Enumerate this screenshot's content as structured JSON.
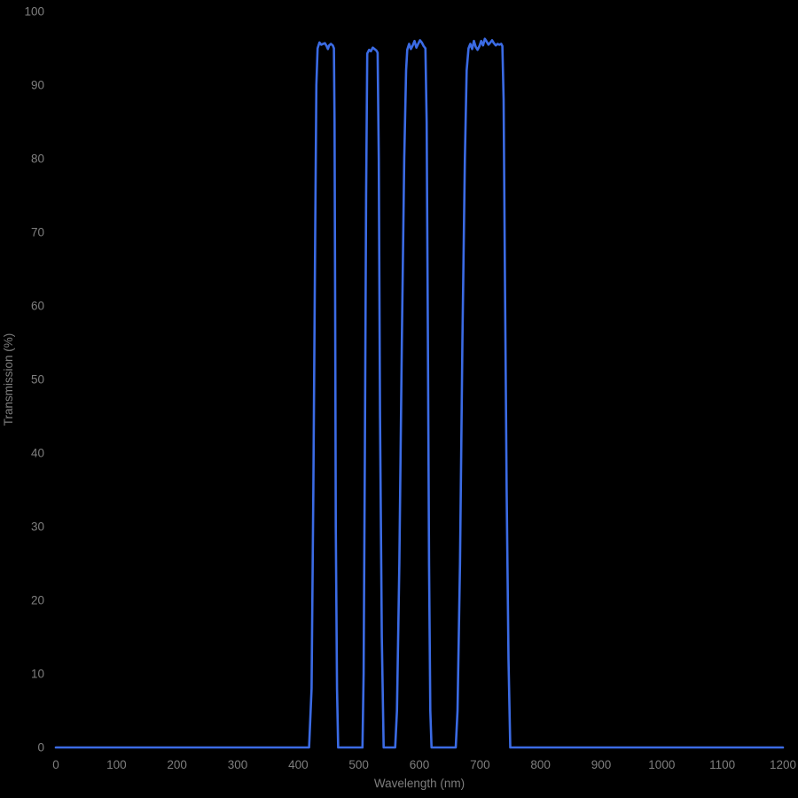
{
  "chart_data": {
    "type": "line",
    "title": "",
    "xlabel": "Wavelength (nm)",
    "ylabel": "Transmission (%)",
    "xlim": [
      0,
      1200
    ],
    "ylim": [
      0,
      100
    ],
    "x_ticks": [
      0,
      100,
      200,
      300,
      400,
      500,
      600,
      700,
      800,
      900,
      1000,
      1100,
      1200
    ],
    "y_ticks": [
      0,
      10,
      20,
      30,
      40,
      50,
      60,
      70,
      80,
      90,
      100
    ],
    "grid": false,
    "legend": "none",
    "background_color": "#000000",
    "tick_label_color": "#7e7e7e",
    "line_color": "#3b6be4",
    "description": "Quad-band interference filter transmission spectrum with four passbands near 432-460, 514-532, 580-611 and 680-737 nm, each peaking around 95-96% transmission",
    "series": [
      {
        "name": "Transmission",
        "points": [
          [
            0,
            0
          ],
          [
            50,
            0
          ],
          [
            100,
            0
          ],
          [
            150,
            0
          ],
          [
            200,
            0
          ],
          [
            250,
            0
          ],
          [
            300,
            0
          ],
          [
            350,
            0
          ],
          [
            400,
            0
          ],
          [
            418,
            0
          ],
          [
            422,
            8
          ],
          [
            425,
            35
          ],
          [
            428,
            70
          ],
          [
            430,
            90
          ],
          [
            432,
            95.0
          ],
          [
            435,
            95.8
          ],
          [
            438,
            95.5
          ],
          [
            441,
            95.6
          ],
          [
            444,
            95.7
          ],
          [
            447,
            95.3
          ],
          [
            449,
            94.9
          ],
          [
            451,
            95.4
          ],
          [
            454,
            95.6
          ],
          [
            457,
            95.4
          ],
          [
            459,
            95.0
          ],
          [
            460,
            85
          ],
          [
            461,
            60
          ],
          [
            462,
            30
          ],
          [
            464,
            8
          ],
          [
            466,
            0
          ],
          [
            480,
            0
          ],
          [
            495,
            0
          ],
          [
            506,
            0
          ],
          [
            508,
            10
          ],
          [
            510,
            40
          ],
          [
            512,
            75
          ],
          [
            514,
            94.3
          ],
          [
            517,
            94.8
          ],
          [
            520,
            94.6
          ],
          [
            523,
            95.1
          ],
          [
            526,
            94.9
          ],
          [
            529,
            94.7
          ],
          [
            531,
            94.4
          ],
          [
            533,
            80
          ],
          [
            535,
            45
          ],
          [
            538,
            15
          ],
          [
            541,
            0
          ],
          [
            550,
            0
          ],
          [
            560,
            0
          ],
          [
            563,
            5
          ],
          [
            567,
            25
          ],
          [
            571,
            55
          ],
          [
            575,
            80
          ],
          [
            578,
            92
          ],
          [
            580,
            94.8
          ],
          [
            583,
            95.6
          ],
          [
            586,
            94.9
          ],
          [
            589,
            95.4
          ],
          [
            592,
            96.0
          ],
          [
            595,
            95.1
          ],
          [
            598,
            95.6
          ],
          [
            601,
            96.1
          ],
          [
            604,
            95.8
          ],
          [
            607,
            95.3
          ],
          [
            610,
            95.0
          ],
          [
            612,
            85
          ],
          [
            614,
            55
          ],
          [
            616,
            25
          ],
          [
            618,
            5
          ],
          [
            620,
            0
          ],
          [
            630,
            0
          ],
          [
            645,
            0
          ],
          [
            660,
            0
          ],
          [
            663,
            5
          ],
          [
            667,
            25
          ],
          [
            671,
            55
          ],
          [
            675,
            80
          ],
          [
            678,
            92
          ],
          [
            681,
            95.0
          ],
          [
            684,
            95.6
          ],
          [
            687,
            94.9
          ],
          [
            690,
            96.0
          ],
          [
            693,
            95.2
          ],
          [
            696,
            94.8
          ],
          [
            699,
            95.3
          ],
          [
            702,
            96.0
          ],
          [
            705,
            95.4
          ],
          [
            708,
            96.3
          ],
          [
            711,
            95.9
          ],
          [
            714,
            95.5
          ],
          [
            717,
            95.8
          ],
          [
            720,
            96.1
          ],
          [
            723,
            95.7
          ],
          [
            726,
            95.4
          ],
          [
            729,
            95.6
          ],
          [
            732,
            95.5
          ],
          [
            735,
            95.6
          ],
          [
            737,
            95.3
          ],
          [
            739,
            88
          ],
          [
            741,
            65
          ],
          [
            744,
            35
          ],
          [
            747,
            12
          ],
          [
            750,
            0
          ],
          [
            775,
            0
          ],
          [
            800,
            0
          ],
          [
            850,
            0
          ],
          [
            900,
            0
          ],
          [
            950,
            0
          ],
          [
            1000,
            0
          ],
          [
            1050,
            0
          ],
          [
            1100,
            0
          ],
          [
            1150,
            0
          ],
          [
            1200,
            0
          ]
        ]
      }
    ]
  }
}
